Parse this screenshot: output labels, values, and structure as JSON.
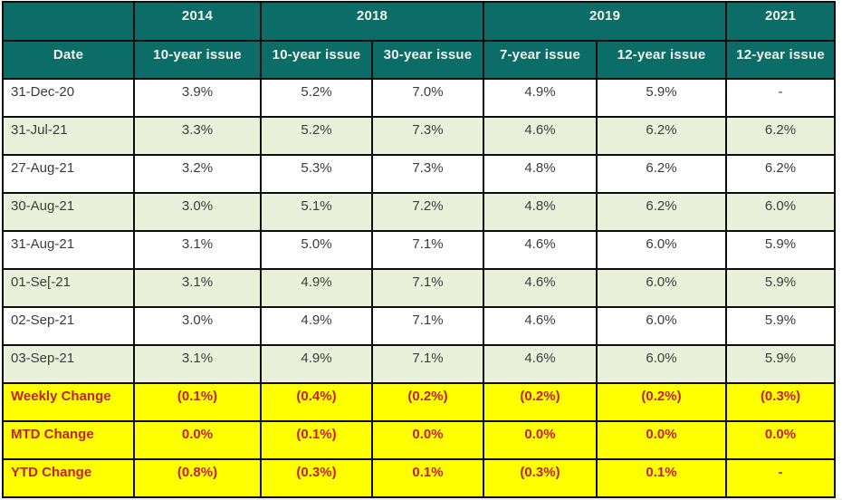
{
  "table": {
    "year_groups": {
      "blank": "",
      "g2014": "2014",
      "g2018": "2018",
      "g2019": "2019",
      "g2021": "2021"
    },
    "columns": [
      "Date",
      "10-year issue",
      "10-year issue",
      "30-year issue",
      "7-year issue",
      "12-year issue",
      "12-year issue"
    ],
    "rows": [
      {
        "date": "31-Dec-20",
        "values": [
          "3.9%",
          "5.2%",
          "7.0%",
          "4.9%",
          "5.9%",
          "-"
        ]
      },
      {
        "date": "31-Jul-21",
        "values": [
          "3.3%",
          "5.2%",
          "7.3%",
          "4.6%",
          "6.2%",
          "6.2%"
        ]
      },
      {
        "date": "27-Aug-21",
        "values": [
          "3.2%",
          "5.3%",
          "7.3%",
          "4.8%",
          "6.2%",
          "6.2%"
        ]
      },
      {
        "date": "30-Aug-21",
        "values": [
          "3.0%",
          "5.1%",
          "7.2%",
          "4.8%",
          "6.2%",
          "6.0%"
        ]
      },
      {
        "date": "31-Aug-21",
        "values": [
          "3.1%",
          "5.0%",
          "7.1%",
          "4.6%",
          "6.0%",
          "5.9%"
        ]
      },
      {
        "date": "01-Se[-21",
        "values": [
          "3.1%",
          "4.9%",
          "7.1%",
          "4.6%",
          "6.0%",
          "5.9%"
        ]
      },
      {
        "date": "02-Sep-21",
        "values": [
          "3.0%",
          "4.9%",
          "7.1%",
          "4.6%",
          "6.0%",
          "5.9%"
        ]
      },
      {
        "date": "03-Sep-21",
        "values": [
          "3.1%",
          "4.9%",
          "7.1%",
          "4.6%",
          "6.0%",
          "5.9%"
        ]
      }
    ],
    "summary_rows": [
      {
        "label": "Weekly Change",
        "values": [
          "(0.1%)",
          "(0.4%)",
          "(0.2%)",
          "(0.2%)",
          "(0.2%)",
          "(0.3%)"
        ]
      },
      {
        "label": "MTD Change",
        "values": [
          "0.0%",
          "(0.1%)",
          "0.0%",
          "0.0%",
          "0.0%",
          "0.0%"
        ]
      },
      {
        "label": "YTD Change",
        "values": [
          "(0.8%)",
          "(0.3%)",
          "0.1%",
          "(0.3%)",
          "0.1%",
          "-"
        ]
      }
    ],
    "colors": {
      "header_bg": "#0c6c67",
      "header_text": "#f2f2ec",
      "alt_row_bg": "#eaf0d9",
      "summary_bg": "#ffff00",
      "summary_text": "#c4202e",
      "border": "#0d0d0d",
      "body_text": "#3c3c3c"
    }
  }
}
